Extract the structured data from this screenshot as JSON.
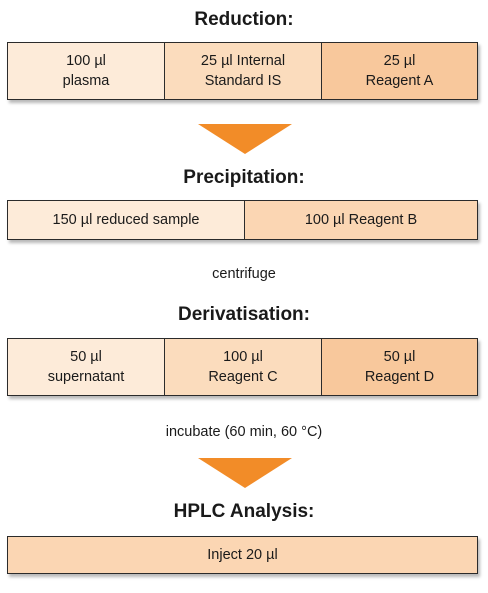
{
  "steps": [
    {
      "heading": "Reduction:",
      "cells": [
        {
          "line1": "100 µl",
          "line2": "plasma",
          "color": "#fdebd9"
        },
        {
          "line1": "25 µl Internal",
          "line2": "Standard IS",
          "color": "#fbdcbd"
        },
        {
          "line1": "25 µl",
          "line2": "Reagent A",
          "color": "#f8c89c"
        }
      ]
    },
    {
      "heading": "Precipitation:",
      "cells": [
        {
          "line1": "150 µl reduced sample",
          "line2": "",
          "color": "#fdebd9"
        },
        {
          "line1": "100 µl Reagent B",
          "line2": "",
          "color": "#fbd6b3"
        }
      ]
    },
    {
      "heading": "Derivatisation:",
      "cells": [
        {
          "line1": "50 µl",
          "line2": "supernatant",
          "color": "#fdebd9"
        },
        {
          "line1": "100 µl",
          "line2": "Reagent C",
          "color": "#fbdcbd"
        },
        {
          "line1": "50 µl",
          "line2": "Reagent D",
          "color": "#f8c89c"
        }
      ]
    },
    {
      "heading": "HPLC Analysis:",
      "cells": [
        {
          "line1": "Inject 20 µl",
          "line2": "",
          "color": "#fbd6b3"
        }
      ]
    }
  ],
  "notes": {
    "centrifuge": "centrifuge",
    "incubate": "incubate (60 min, 60 °C)"
  },
  "arrow_color": "#f28c28"
}
